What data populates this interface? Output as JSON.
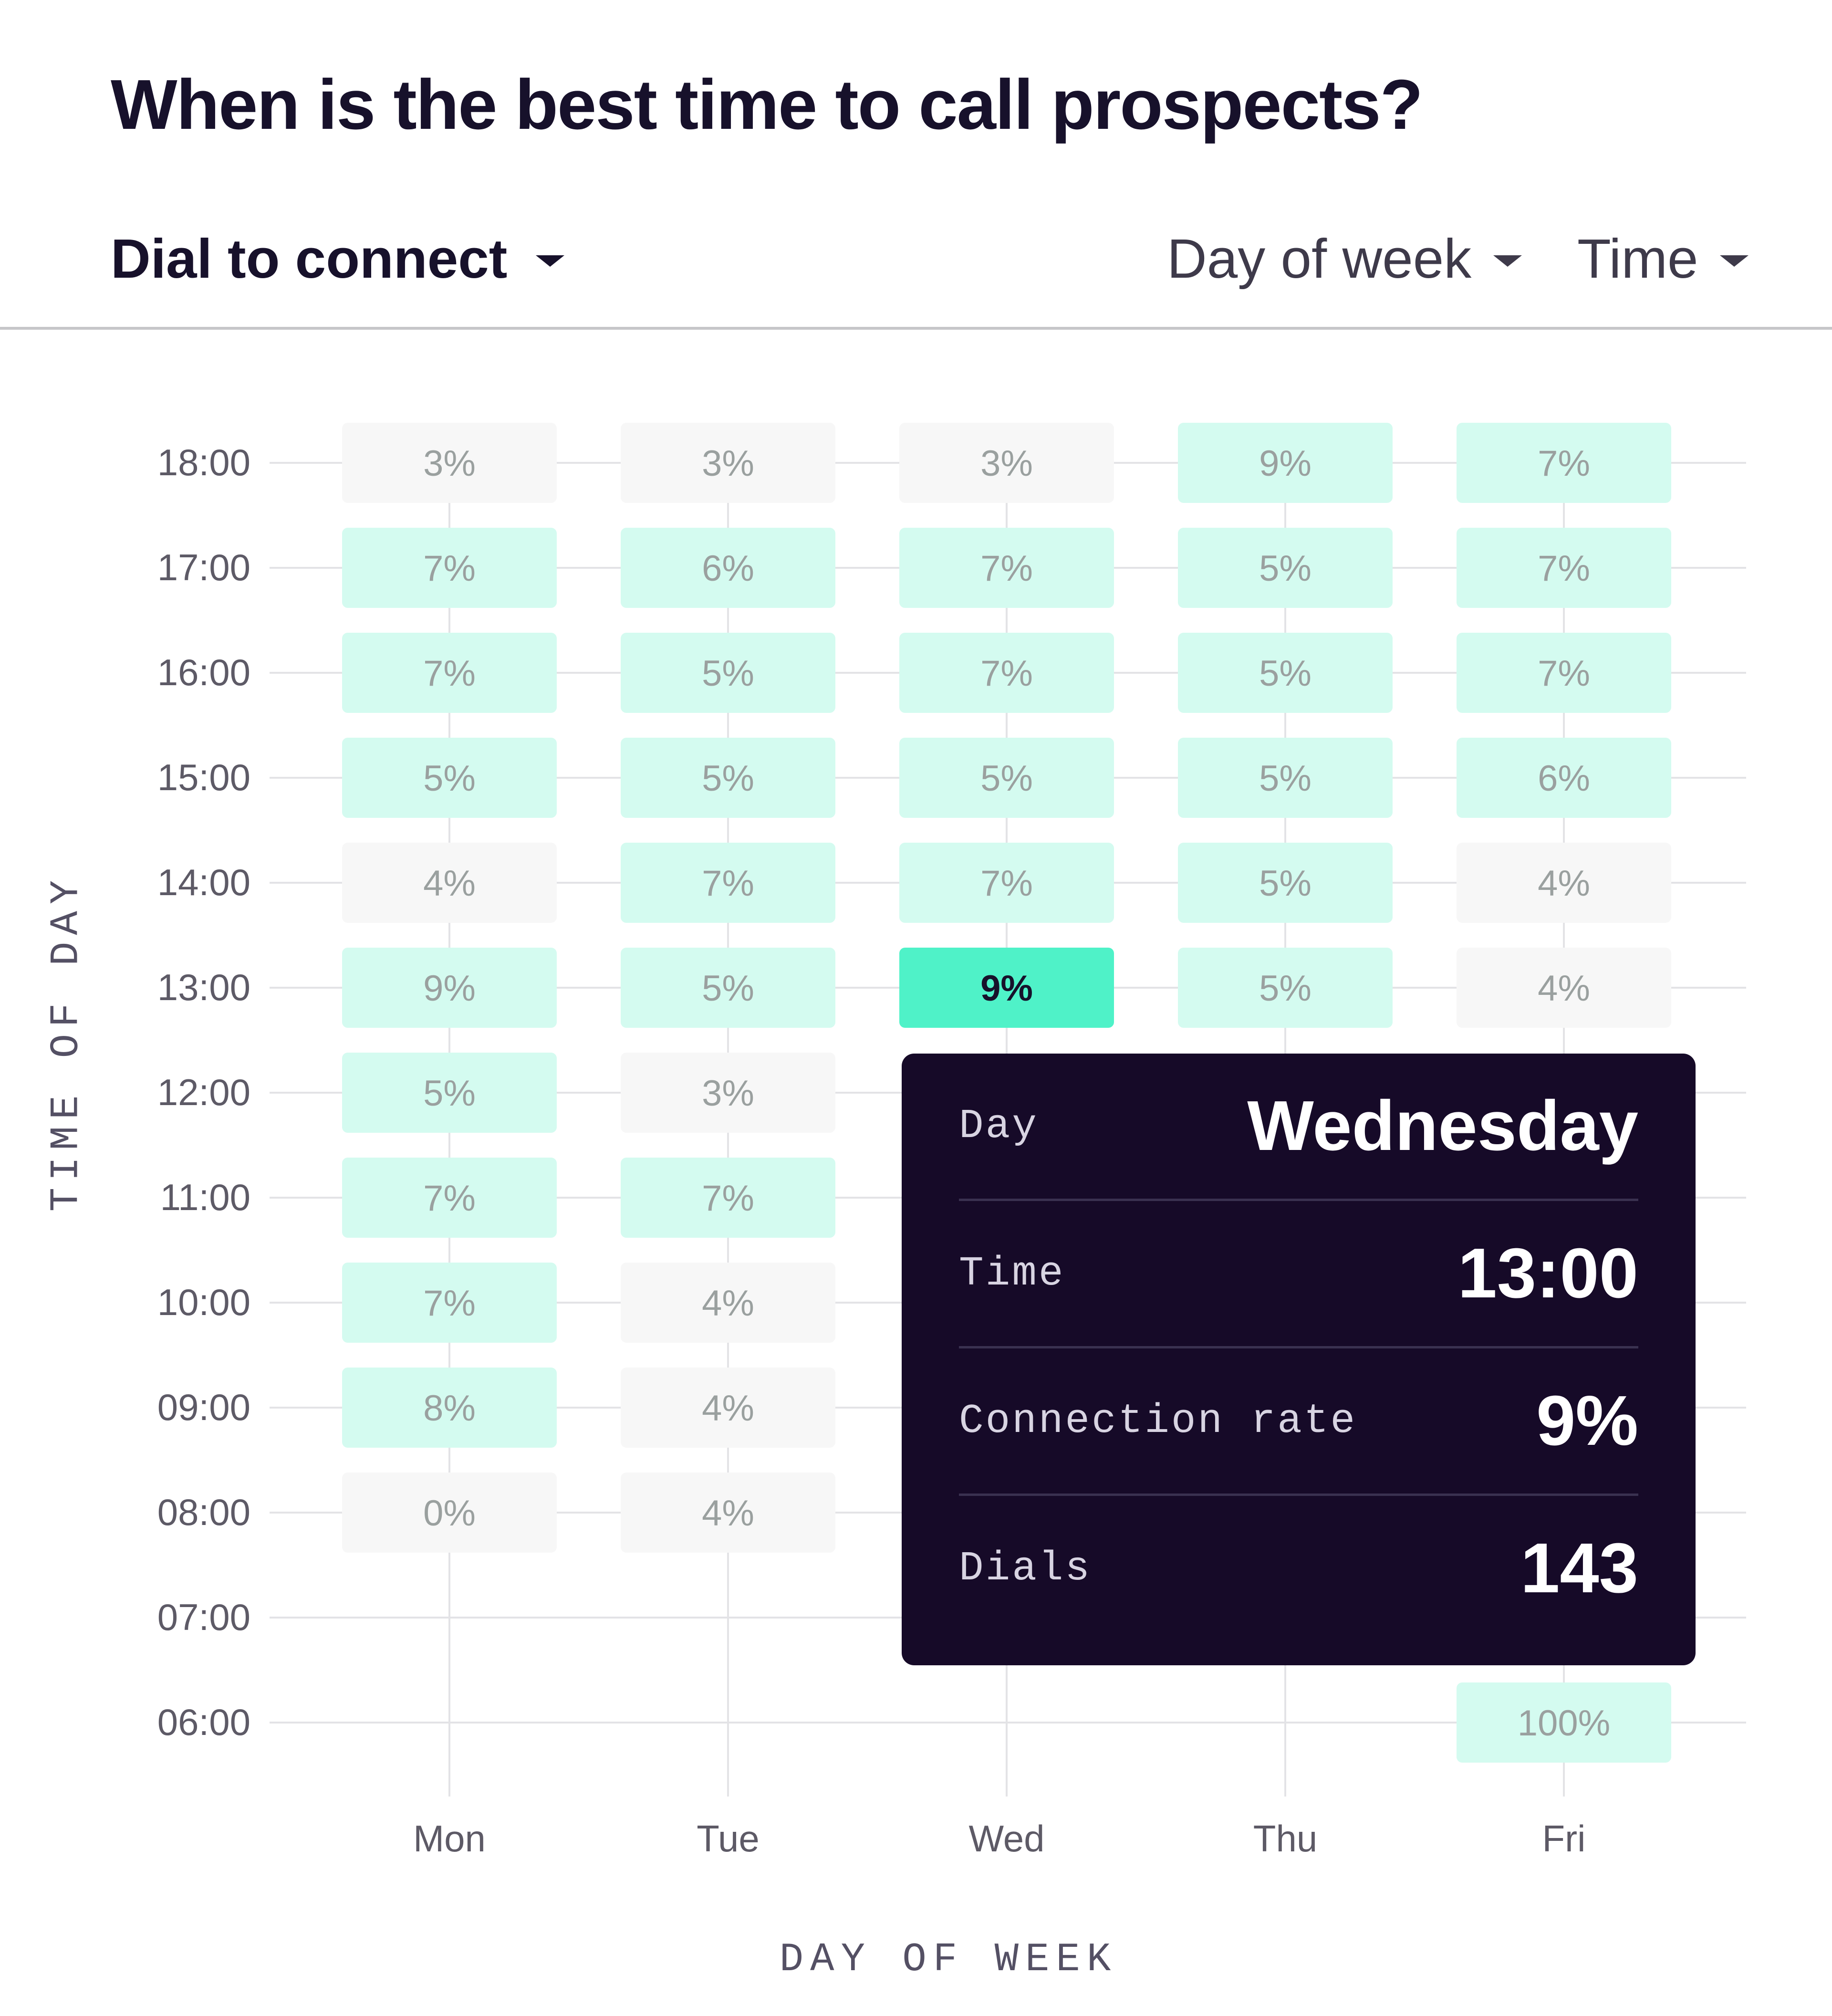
{
  "header": {
    "title": "When is the best time to call prospects?",
    "metric_label": "Dial to connect",
    "day_filter_label": "Day of week",
    "time_filter_label": "Time"
  },
  "chart_data": {
    "type": "heatmap",
    "title": "When is the best time to call prospects?",
    "xlabel": "DAY OF WEEK",
    "ylabel": "TIME OF DAY",
    "x_categories": [
      "Mon",
      "Tue",
      "Wed",
      "Thu",
      "Fri"
    ],
    "y_categories": [
      "06:00",
      "07:00",
      "08:00",
      "09:00",
      "10:00",
      "11:00",
      "12:00",
      "13:00",
      "14:00",
      "15:00",
      "16:00",
      "17:00",
      "18:00"
    ],
    "unit": "%",
    "cells": [
      {
        "day": "Mon",
        "time": "18:00",
        "value": 3
      },
      {
        "day": "Mon",
        "time": "17:00",
        "value": 7
      },
      {
        "day": "Mon",
        "time": "16:00",
        "value": 7
      },
      {
        "day": "Mon",
        "time": "15:00",
        "value": 5
      },
      {
        "day": "Mon",
        "time": "14:00",
        "value": 4
      },
      {
        "day": "Mon",
        "time": "13:00",
        "value": 9
      },
      {
        "day": "Mon",
        "time": "12:00",
        "value": 5
      },
      {
        "day": "Mon",
        "time": "11:00",
        "value": 7
      },
      {
        "day": "Mon",
        "time": "10:00",
        "value": 7
      },
      {
        "day": "Mon",
        "time": "09:00",
        "value": 8
      },
      {
        "day": "Mon",
        "time": "08:00",
        "value": 0
      },
      {
        "day": "Tue",
        "time": "18:00",
        "value": 3
      },
      {
        "day": "Tue",
        "time": "17:00",
        "value": 6
      },
      {
        "day": "Tue",
        "time": "16:00",
        "value": 5
      },
      {
        "day": "Tue",
        "time": "15:00",
        "value": 5
      },
      {
        "day": "Tue",
        "time": "14:00",
        "value": 7
      },
      {
        "day": "Tue",
        "time": "13:00",
        "value": 5
      },
      {
        "day": "Tue",
        "time": "12:00",
        "value": 3
      },
      {
        "day": "Tue",
        "time": "11:00",
        "value": 7
      },
      {
        "day": "Tue",
        "time": "10:00",
        "value": 4
      },
      {
        "day": "Tue",
        "time": "09:00",
        "value": 4
      },
      {
        "day": "Tue",
        "time": "08:00",
        "value": 4
      },
      {
        "day": "Wed",
        "time": "18:00",
        "value": 3
      },
      {
        "day": "Wed",
        "time": "17:00",
        "value": 7
      },
      {
        "day": "Wed",
        "time": "16:00",
        "value": 7
      },
      {
        "day": "Wed",
        "time": "15:00",
        "value": 5
      },
      {
        "day": "Wed",
        "time": "14:00",
        "value": 7
      },
      {
        "day": "Wed",
        "time": "13:00",
        "value": 9,
        "highlighted": true
      },
      {
        "day": "Thu",
        "time": "18:00",
        "value": 9
      },
      {
        "day": "Thu",
        "time": "17:00",
        "value": 5
      },
      {
        "day": "Thu",
        "time": "16:00",
        "value": 5
      },
      {
        "day": "Thu",
        "time": "15:00",
        "value": 5
      },
      {
        "day": "Thu",
        "time": "14:00",
        "value": 5
      },
      {
        "day": "Thu",
        "time": "13:00",
        "value": 5
      },
      {
        "day": "Fri",
        "time": "18:00",
        "value": 7
      },
      {
        "day": "Fri",
        "time": "17:00",
        "value": 7
      },
      {
        "day": "Fri",
        "time": "16:00",
        "value": 7
      },
      {
        "day": "Fri",
        "time": "15:00",
        "value": 6
      },
      {
        "day": "Fri",
        "time": "14:00",
        "value": 4
      },
      {
        "day": "Fri",
        "time": "13:00",
        "value": 4
      },
      {
        "day": "Fri",
        "time": "06:00",
        "value": 100
      }
    ],
    "colors": {
      "high": "#d4fbf0",
      "low": "#f7f7f7",
      "highlight": "#4ff2c8",
      "cell_text": "#9aa09f",
      "highlight_text": "#17112b",
      "axis_text": "#5d5a66",
      "grid": "#e3e3e6"
    }
  },
  "tooltip": {
    "rows": [
      {
        "key": "Day",
        "value": "Wednesday"
      },
      {
        "key": "Time",
        "value": "13:00"
      },
      {
        "key": "Connection rate",
        "value": "9%"
      },
      {
        "key": "Dials",
        "value": "143"
      }
    ]
  }
}
